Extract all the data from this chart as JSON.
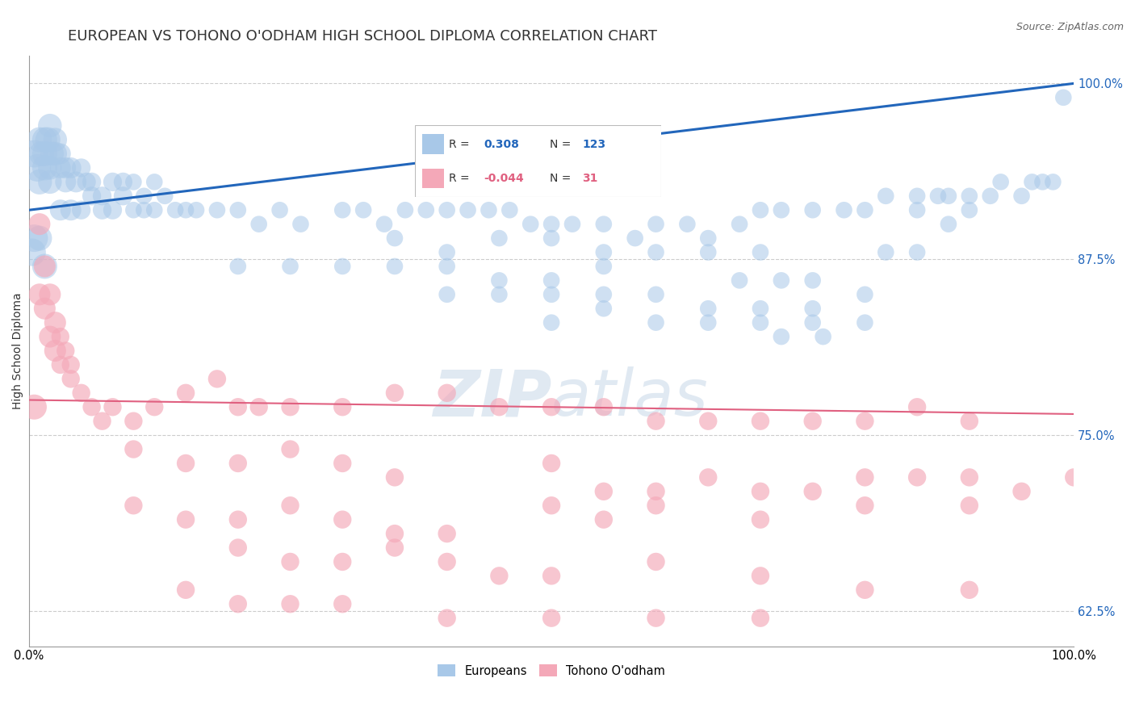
{
  "title": "EUROPEAN VS TOHONO O'ODHAM HIGH SCHOOL DIPLOMA CORRELATION CHART",
  "source": "Source: ZipAtlas.com",
  "ylabel": "High School Diploma",
  "watermark": "ZIPatlas",
  "blue_R": "0.308",
  "blue_N": "123",
  "pink_R": "-0.044",
  "pink_N": "31",
  "blue_color": "#a8c8e8",
  "pink_color": "#f4a8b8",
  "blue_line_color": "#2266bb",
  "pink_line_color": "#e06080",
  "blue_trend": [
    0,
    91,
    100,
    100
  ],
  "pink_trend": [
    0,
    77.5,
    100,
    76.5
  ],
  "blue_points": [
    [
      0.5,
      95
    ],
    [
      1.0,
      96
    ],
    [
      1.5,
      96
    ],
    [
      2.0,
      97
    ],
    [
      2.5,
      96
    ],
    [
      1.2,
      95
    ],
    [
      1.8,
      96
    ],
    [
      2.2,
      95
    ],
    [
      3.0,
      95
    ],
    [
      3.5,
      94
    ],
    [
      0.8,
      94
    ],
    [
      1.5,
      95
    ],
    [
      2.0,
      94
    ],
    [
      2.5,
      95
    ],
    [
      3.0,
      94
    ],
    [
      1.0,
      93
    ],
    [
      1.5,
      94
    ],
    [
      2.0,
      93
    ],
    [
      3.5,
      93
    ],
    [
      4.0,
      94
    ],
    [
      4.5,
      93
    ],
    [
      5.0,
      94
    ],
    [
      5.5,
      93
    ],
    [
      6.0,
      93
    ],
    [
      7.0,
      92
    ],
    [
      8.0,
      93
    ],
    [
      9.0,
      93
    ],
    [
      10.0,
      93
    ],
    [
      11.0,
      92
    ],
    [
      12.0,
      93
    ],
    [
      13.0,
      92
    ],
    [
      3.0,
      91
    ],
    [
      4.0,
      91
    ],
    [
      5.0,
      91
    ],
    [
      6.0,
      92
    ],
    [
      7.0,
      91
    ],
    [
      8.0,
      91
    ],
    [
      9.0,
      92
    ],
    [
      10.0,
      91
    ],
    [
      11.0,
      91
    ],
    [
      12.0,
      91
    ],
    [
      14.0,
      91
    ],
    [
      15.0,
      91
    ],
    [
      16.0,
      91
    ],
    [
      18.0,
      91
    ],
    [
      20.0,
      91
    ],
    [
      22.0,
      90
    ],
    [
      0.5,
      89
    ],
    [
      1.0,
      89
    ],
    [
      24.0,
      91
    ],
    [
      26.0,
      90
    ],
    [
      30.0,
      91
    ],
    [
      32.0,
      91
    ],
    [
      34.0,
      90
    ],
    [
      36.0,
      91
    ],
    [
      38.0,
      91
    ],
    [
      40.0,
      91
    ],
    [
      42.0,
      91
    ],
    [
      44.0,
      91
    ],
    [
      46.0,
      91
    ],
    [
      48.0,
      90
    ],
    [
      50.0,
      90
    ],
    [
      52.0,
      90
    ],
    [
      55.0,
      90
    ],
    [
      58.0,
      89
    ],
    [
      60.0,
      90
    ],
    [
      63.0,
      90
    ],
    [
      65.0,
      89
    ],
    [
      68.0,
      90
    ],
    [
      70.0,
      91
    ],
    [
      72.0,
      91
    ],
    [
      75.0,
      91
    ],
    [
      78.0,
      91
    ],
    [
      80.0,
      91
    ],
    [
      82.0,
      92
    ],
    [
      85.0,
      92
    ],
    [
      88.0,
      92
    ],
    [
      90.0,
      92
    ],
    [
      35.0,
      89
    ],
    [
      40.0,
      88
    ],
    [
      45.0,
      89
    ],
    [
      50.0,
      89
    ],
    [
      55.0,
      88
    ],
    [
      60.0,
      88
    ],
    [
      65.0,
      88
    ],
    [
      70.0,
      88
    ],
    [
      0.3,
      88
    ],
    [
      1.5,
      87
    ],
    [
      20.0,
      87
    ],
    [
      25.0,
      87
    ],
    [
      30.0,
      87
    ],
    [
      35.0,
      87
    ],
    [
      40.0,
      87
    ],
    [
      45.0,
      86
    ],
    [
      50.0,
      86
    ],
    [
      55.0,
      87
    ],
    [
      75.0,
      86
    ],
    [
      40.0,
      85
    ],
    [
      45.0,
      85
    ],
    [
      50.0,
      85
    ],
    [
      55.0,
      85
    ],
    [
      60.0,
      85
    ],
    [
      65.0,
      84
    ],
    [
      70.0,
      84
    ],
    [
      75.0,
      84
    ],
    [
      80.0,
      85
    ],
    [
      60.0,
      83
    ],
    [
      65.0,
      83
    ],
    [
      70.0,
      83
    ],
    [
      75.0,
      83
    ],
    [
      72.0,
      82
    ],
    [
      76.0,
      82
    ],
    [
      80.0,
      83
    ],
    [
      95.0,
      92
    ],
    [
      98.0,
      93
    ],
    [
      92.0,
      92
    ],
    [
      97.0,
      93
    ],
    [
      85.0,
      91
    ],
    [
      87.0,
      92
    ],
    [
      93.0,
      93
    ],
    [
      96.0,
      93
    ],
    [
      99.0,
      99
    ],
    [
      68.0,
      86
    ],
    [
      72.0,
      86
    ],
    [
      50.0,
      83
    ],
    [
      55.0,
      84
    ],
    [
      82.0,
      88
    ],
    [
      85.0,
      88
    ],
    [
      88.0,
      90
    ],
    [
      90.0,
      91
    ]
  ],
  "blue_sizes_raw": [
    500,
    600,
    700,
    600,
    500,
    600,
    700,
    600,
    500,
    400,
    500,
    600,
    500,
    600,
    500,
    400,
    500,
    400,
    400,
    400,
    350,
    350,
    350,
    350,
    350,
    350,
    350,
    350,
    300,
    300,
    300,
    300,
    300,
    300,
    300,
    300,
    300,
    300,
    300,
    300,
    300,
    300,
    300,
    300,
    300,
    300,
    300,
    400,
    350,
    300,
    300,
    300,
    300,
    300,
    300,
    300,
    300,
    300,
    300,
    300,
    300,
    300,
    300,
    300,
    300,
    300,
    300,
    300,
    300,
    300,
    300,
    300,
    300,
    300,
    300,
    300,
    300,
    300,
    300,
    300,
    300,
    300,
    300,
    300,
    300,
    300,
    300,
    300,
    300,
    300,
    300,
    300,
    300,
    300,
    300,
    300,
    300,
    300,
    300,
    300,
    300,
    300,
    300,
    300,
    300,
    300,
    300,
    300,
    300,
    300,
    300,
    300,
    300,
    300,
    300,
    300,
    300,
    300,
    300,
    300,
    300,
    300,
    300,
    300,
    300,
    300,
    300,
    300,
    300,
    300,
    300
  ],
  "pink_points": [
    [
      0.5,
      77
    ],
    [
      1.0,
      90
    ],
    [
      1.5,
      87
    ],
    [
      2.0,
      85
    ],
    [
      2.5,
      83
    ],
    [
      3.0,
      82
    ],
    [
      3.5,
      81
    ],
    [
      4.0,
      80
    ],
    [
      1.0,
      85
    ],
    [
      1.5,
      84
    ],
    [
      2.0,
      82
    ],
    [
      2.5,
      81
    ],
    [
      3.0,
      80
    ],
    [
      4.0,
      79
    ],
    [
      5.0,
      78
    ],
    [
      6.0,
      77
    ],
    [
      7.0,
      76
    ],
    [
      8.0,
      77
    ],
    [
      10.0,
      76
    ],
    [
      12.0,
      77
    ],
    [
      15.0,
      78
    ],
    [
      18.0,
      79
    ],
    [
      20.0,
      77
    ],
    [
      22.0,
      77
    ],
    [
      25.0,
      77
    ],
    [
      30.0,
      77
    ],
    [
      35.0,
      78
    ],
    [
      40.0,
      78
    ],
    [
      45.0,
      77
    ],
    [
      50.0,
      77
    ],
    [
      55.0,
      77
    ],
    [
      60.0,
      76
    ],
    [
      65.0,
      76
    ],
    [
      70.0,
      76
    ],
    [
      75.0,
      76
    ],
    [
      80.0,
      76
    ],
    [
      85.0,
      77
    ],
    [
      90.0,
      76
    ],
    [
      10.0,
      74
    ],
    [
      15.0,
      73
    ],
    [
      20.0,
      73
    ],
    [
      25.0,
      74
    ],
    [
      30.0,
      73
    ],
    [
      35.0,
      72
    ],
    [
      50.0,
      73
    ],
    [
      55.0,
      71
    ],
    [
      60.0,
      71
    ],
    [
      65.0,
      72
    ],
    [
      70.0,
      71
    ],
    [
      75.0,
      71
    ],
    [
      80.0,
      72
    ],
    [
      85.0,
      72
    ],
    [
      90.0,
      72
    ],
    [
      95.0,
      71
    ],
    [
      100.0,
      72
    ],
    [
      10.0,
      70
    ],
    [
      15.0,
      69
    ],
    [
      20.0,
      69
    ],
    [
      25.0,
      70
    ],
    [
      30.0,
      69
    ],
    [
      35.0,
      68
    ],
    [
      40.0,
      68
    ],
    [
      50.0,
      70
    ],
    [
      55.0,
      69
    ],
    [
      60.0,
      70
    ],
    [
      70.0,
      69
    ],
    [
      80.0,
      70
    ],
    [
      90.0,
      70
    ],
    [
      20.0,
      67
    ],
    [
      25.0,
      66
    ],
    [
      30.0,
      66
    ],
    [
      35.0,
      67
    ],
    [
      40.0,
      66
    ],
    [
      45.0,
      65
    ],
    [
      50.0,
      65
    ],
    [
      60.0,
      66
    ],
    [
      70.0,
      65
    ],
    [
      80.0,
      64
    ],
    [
      90.0,
      64
    ],
    [
      15.0,
      64
    ],
    [
      20.0,
      63
    ],
    [
      25.0,
      63
    ],
    [
      30.0,
      63
    ],
    [
      40.0,
      62
    ],
    [
      50.0,
      62
    ],
    [
      60.0,
      62
    ],
    [
      70.0,
      62
    ]
  ],
  "xlim": [
    0,
    100
  ],
  "ylim": [
    60,
    102
  ],
  "yticks": [
    62.5,
    75.0,
    87.5,
    100.0
  ],
  "xticks": [
    0,
    100
  ],
  "xtick_labels": [
    "0.0%",
    "100.0%"
  ],
  "ytick_labels": [
    "62.5%",
    "75.0%",
    "87.5%",
    "100.0%"
  ],
  "grid_color": "#cccccc",
  "background_color": "#ffffff",
  "title_fontsize": 13,
  "legend_label1": "Europeans",
  "legend_label2": "Tohono O'odham"
}
